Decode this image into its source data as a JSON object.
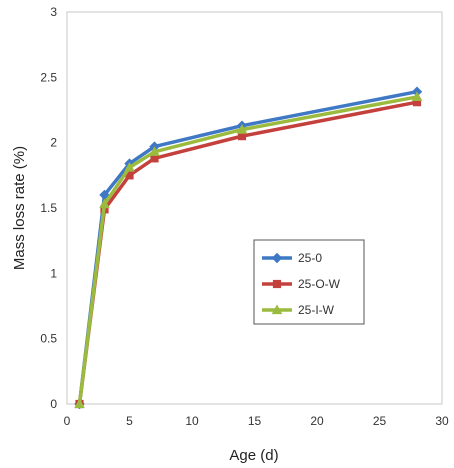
{
  "chart_data": {
    "type": "line",
    "title": "",
    "xlabel": "Age (d)",
    "ylabel": "Mass loss rate (%)",
    "xlim": [
      0,
      30
    ],
    "ylim": [
      0,
      3
    ],
    "x_ticks": [
      "0",
      "5",
      "10",
      "15",
      "20",
      "25",
      "30"
    ],
    "y_ticks": [
      "0",
      "0.5",
      "1",
      "1.5",
      "2",
      "2.5",
      "3"
    ],
    "grid": false,
    "legend_position": "right-middle",
    "x": [
      1,
      3,
      5,
      7,
      14,
      28
    ],
    "series": [
      {
        "name": "25-0",
        "color": "#3f78c4",
        "marker": "diamond",
        "values": [
          0,
          1.6,
          1.84,
          1.97,
          2.13,
          2.39
        ]
      },
      {
        "name": "25-O-W",
        "color": "#c4403c",
        "marker": "square",
        "values": [
          0,
          1.49,
          1.75,
          1.88,
          2.05,
          2.31
        ]
      },
      {
        "name": "25-I-W",
        "color": "#9bbb3f",
        "marker": "triangle",
        "values": [
          0,
          1.53,
          1.81,
          1.93,
          2.1,
          2.35
        ]
      }
    ]
  }
}
